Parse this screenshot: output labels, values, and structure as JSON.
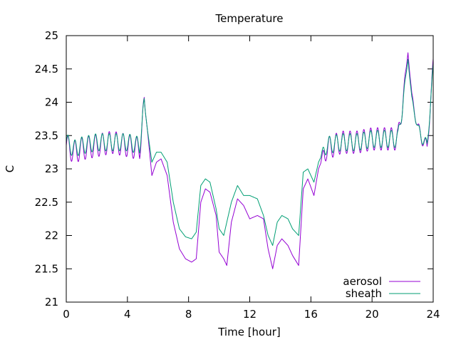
{
  "chart_data": {
    "type": "line",
    "title": "Temperature",
    "xlabel": "Time [hour]",
    "ylabel": "C",
    "xlim": [
      0,
      24
    ],
    "ylim": [
      21,
      25
    ],
    "xticks": [
      0,
      4,
      8,
      12,
      16,
      20,
      24
    ],
    "xtick_labels": [
      "0",
      "4",
      "8",
      "12",
      "16",
      "20",
      "24"
    ],
    "yticks": [
      21,
      21.5,
      22,
      22.5,
      23,
      23.5,
      24,
      24.5,
      25
    ],
    "ytick_labels": [
      "21",
      "21.5",
      "22",
      "22.5",
      "23",
      "23.5",
      "24",
      "24.5",
      "25"
    ],
    "legend_position": "bottom-right",
    "series": [
      {
        "name": "aerosol",
        "color": "#9400d3",
        "base": [
          [
            0,
            23.35
          ],
          [
            0.5,
            23.25
          ],
          [
            1,
            23.3
          ],
          [
            2,
            23.35
          ],
          [
            3,
            23.4
          ],
          [
            4,
            23.35
          ],
          [
            4.8,
            23.3
          ],
          [
            5.1,
            24.0
          ],
          [
            5.3,
            23.6
          ],
          [
            5.6,
            22.9
          ],
          [
            5.9,
            23.1
          ],
          [
            6.2,
            23.15
          ],
          [
            6.6,
            22.9
          ],
          [
            7.0,
            22.2
          ],
          [
            7.4,
            21.8
          ],
          [
            7.8,
            21.65
          ],
          [
            8.2,
            21.6
          ],
          [
            8.5,
            21.65
          ],
          [
            8.8,
            22.5
          ],
          [
            9.1,
            22.7
          ],
          [
            9.4,
            22.65
          ],
          [
            9.8,
            22.3
          ],
          [
            10.0,
            21.75
          ],
          [
            10.3,
            21.65
          ],
          [
            10.5,
            21.55
          ],
          [
            10.8,
            22.2
          ],
          [
            11.2,
            22.55
          ],
          [
            11.6,
            22.45
          ],
          [
            12.0,
            22.25
          ],
          [
            12.5,
            22.3
          ],
          [
            12.9,
            22.25
          ],
          [
            13.2,
            21.8
          ],
          [
            13.5,
            21.5
          ],
          [
            13.8,
            21.85
          ],
          [
            14.1,
            21.95
          ],
          [
            14.5,
            21.85
          ],
          [
            14.8,
            21.7
          ],
          [
            15.2,
            21.55
          ],
          [
            15.5,
            22.7
          ],
          [
            15.8,
            22.85
          ],
          [
            16.2,
            22.6
          ],
          [
            16.5,
            23.0
          ],
          [
            17.0,
            23.3
          ],
          [
            18.0,
            23.4
          ],
          [
            19.0,
            23.4
          ],
          [
            20.0,
            23.45
          ],
          [
            21.0,
            23.45
          ],
          [
            21.7,
            23.45
          ],
          [
            22.1,
            24.2
          ],
          [
            22.35,
            24.75
          ],
          [
            22.6,
            24.1
          ],
          [
            23.0,
            23.6
          ],
          [
            23.3,
            23.45
          ],
          [
            23.6,
            23.3
          ],
          [
            24.0,
            24.55
          ]
        ],
        "osc": [
          [
            0,
            0.17
          ],
          [
            5.0,
            0.17
          ],
          [
            5.2,
            0
          ],
          [
            16.6,
            0
          ],
          [
            16.9,
            0.17
          ],
          [
            22.0,
            0.17
          ],
          [
            22.3,
            0
          ],
          [
            23.0,
            0.1
          ],
          [
            24.0,
            0.12
          ]
        ],
        "period": 0.45
      },
      {
        "name": "sheath",
        "color": "#009e73",
        "base": [
          [
            0,
            23.4
          ],
          [
            0.5,
            23.3
          ],
          [
            1,
            23.35
          ],
          [
            2,
            23.4
          ],
          [
            3,
            23.4
          ],
          [
            4,
            23.4
          ],
          [
            4.8,
            23.35
          ],
          [
            5.1,
            24.0
          ],
          [
            5.3,
            23.6
          ],
          [
            5.6,
            23.1
          ],
          [
            5.9,
            23.25
          ],
          [
            6.2,
            23.25
          ],
          [
            6.6,
            23.1
          ],
          [
            7.0,
            22.5
          ],
          [
            7.4,
            22.1
          ],
          [
            7.8,
            21.98
          ],
          [
            8.2,
            21.95
          ],
          [
            8.5,
            22.05
          ],
          [
            8.8,
            22.75
          ],
          [
            9.1,
            22.85
          ],
          [
            9.4,
            22.8
          ],
          [
            9.8,
            22.4
          ],
          [
            10.0,
            22.1
          ],
          [
            10.3,
            22.0
          ],
          [
            10.5,
            22.2
          ],
          [
            10.8,
            22.5
          ],
          [
            11.2,
            22.75
          ],
          [
            11.6,
            22.6
          ],
          [
            12.0,
            22.6
          ],
          [
            12.5,
            22.55
          ],
          [
            12.9,
            22.3
          ],
          [
            13.2,
            22.0
          ],
          [
            13.5,
            21.85
          ],
          [
            13.8,
            22.2
          ],
          [
            14.1,
            22.3
          ],
          [
            14.5,
            22.25
          ],
          [
            14.8,
            22.1
          ],
          [
            15.2,
            22.0
          ],
          [
            15.5,
            22.95
          ],
          [
            15.8,
            23.0
          ],
          [
            16.2,
            22.8
          ],
          [
            16.5,
            23.1
          ],
          [
            17.0,
            23.35
          ],
          [
            18.0,
            23.4
          ],
          [
            19.0,
            23.4
          ],
          [
            20.0,
            23.45
          ],
          [
            21.0,
            23.45
          ],
          [
            21.7,
            23.45
          ],
          [
            22.1,
            24.15
          ],
          [
            22.35,
            24.65
          ],
          [
            22.6,
            24.05
          ],
          [
            23.0,
            23.6
          ],
          [
            23.3,
            23.45
          ],
          [
            23.6,
            23.35
          ],
          [
            24.0,
            24.5
          ]
        ],
        "osc": [
          [
            0,
            0.13
          ],
          [
            5.0,
            0.13
          ],
          [
            5.2,
            0
          ],
          [
            16.6,
            0
          ],
          [
            16.9,
            0.13
          ],
          [
            22.0,
            0.13
          ],
          [
            22.3,
            0
          ],
          [
            23.0,
            0.08
          ],
          [
            24.0,
            0.1
          ]
        ],
        "period": 0.45
      }
    ]
  }
}
